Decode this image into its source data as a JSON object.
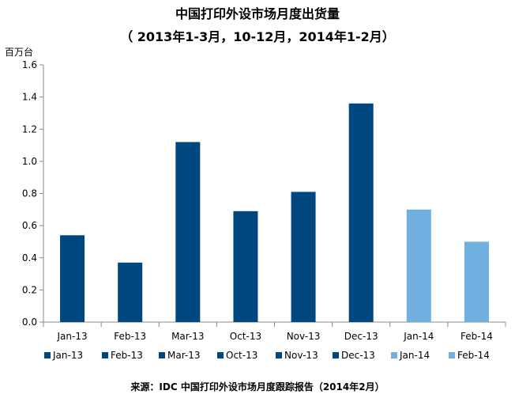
{
  "title": "中国打印外设市场月度出货量",
  "subtitle": "（ 2013年1-3月，10-12月，2014年1-2月）",
  "unit_label": "百万台",
  "source": "来源：IDC 中国打印外设市场月度跟踪报告（2014年2月）",
  "colors": {
    "dark": "#00467F",
    "light": "#6FB0E0",
    "axis": "#888888"
  },
  "chart_data": {
    "type": "bar",
    "categories": [
      "Jan-13",
      "Feb-13",
      "Mar-13",
      "Oct-13",
      "Nov-13",
      "Dec-13",
      "Jan-14",
      "Feb-14"
    ],
    "values": [
      0.54,
      0.37,
      1.12,
      0.69,
      0.81,
      1.36,
      0.7,
      0.5
    ],
    "bar_colors": [
      "dark",
      "dark",
      "dark",
      "dark",
      "dark",
      "dark",
      "light",
      "light"
    ],
    "ylim": [
      0,
      1.6
    ],
    "yticks": [
      "0.0",
      "0.2",
      "0.4",
      "0.6",
      "0.8",
      "1.0",
      "1.2",
      "1.4",
      "1.6"
    ],
    "legend": [
      "Jan-13",
      "Feb-13",
      "Mar-13",
      "Oct-13",
      "Nov-13",
      "Dec-13",
      "Jan-14",
      "Feb-14"
    ],
    "legend_position": "bottom",
    "grid": false
  }
}
